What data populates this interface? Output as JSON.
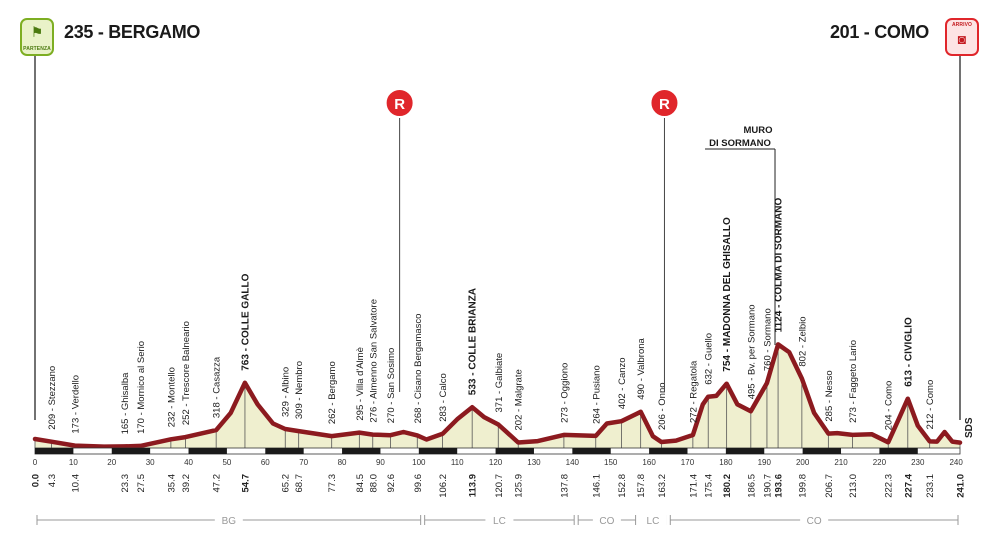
{
  "header": {
    "start_title": "235 - BERGAMO",
    "start_badge": "PARTENZA",
    "finish_title": "201 - COMO",
    "finish_badge": "ARRIVO"
  },
  "chart_data": {
    "type": "area",
    "title": "",
    "xlabel": "",
    "ylabel": "",
    "xlim": [
      0,
      240
    ],
    "ylim": [
      150,
      1350
    ],
    "grid": false,
    "fill_color": "#efefcf",
    "line_color": "#8c1a1f",
    "x_ticks": [
      0,
      10,
      20,
      30,
      40,
      50,
      60,
      70,
      80,
      90,
      100,
      110,
      120,
      130,
      140,
      150,
      160,
      170,
      180,
      190,
      200,
      210,
      220,
      230,
      240
    ],
    "profile": [
      {
        "x": 0,
        "y": 235
      },
      {
        "x": 4.3,
        "y": 209
      },
      {
        "x": 10.4,
        "y": 173
      },
      {
        "x": 18,
        "y": 163
      },
      {
        "x": 23.3,
        "y": 165
      },
      {
        "x": 27.5,
        "y": 170
      },
      {
        "x": 35.4,
        "y": 232
      },
      {
        "x": 39.2,
        "y": 252
      },
      {
        "x": 47.2,
        "y": 318
      },
      {
        "x": 51,
        "y": 480
      },
      {
        "x": 54.7,
        "y": 763
      },
      {
        "x": 58,
        "y": 560
      },
      {
        "x": 62,
        "y": 380
      },
      {
        "x": 65.2,
        "y": 329
      },
      {
        "x": 68.7,
        "y": 309
      },
      {
        "x": 77.3,
        "y": 262
      },
      {
        "x": 84.5,
        "y": 295
      },
      {
        "x": 88.0,
        "y": 276
      },
      {
        "x": 92.6,
        "y": 270
      },
      {
        "x": 96,
        "y": 300
      },
      {
        "x": 99.6,
        "y": 268
      },
      {
        "x": 102,
        "y": 230
      },
      {
        "x": 106.2,
        "y": 283
      },
      {
        "x": 110,
        "y": 420
      },
      {
        "x": 113.9,
        "y": 533
      },
      {
        "x": 117,
        "y": 440
      },
      {
        "x": 120.7,
        "y": 371
      },
      {
        "x": 125.9,
        "y": 202
      },
      {
        "x": 131,
        "y": 215
      },
      {
        "x": 137.8,
        "y": 273
      },
      {
        "x": 146.1,
        "y": 264
      },
      {
        "x": 149,
        "y": 380
      },
      {
        "x": 152.8,
        "y": 402
      },
      {
        "x": 157.8,
        "y": 490
      },
      {
        "x": 161,
        "y": 260
      },
      {
        "x": 163.2,
        "y": 206
      },
      {
        "x": 167,
        "y": 220
      },
      {
        "x": 171.4,
        "y": 272
      },
      {
        "x": 174,
        "y": 560
      },
      {
        "x": 175.4,
        "y": 632
      },
      {
        "x": 177.5,
        "y": 640
      },
      {
        "x": 180.2,
        "y": 754
      },
      {
        "x": 183,
        "y": 560
      },
      {
        "x": 186.5,
        "y": 495
      },
      {
        "x": 190.7,
        "y": 760
      },
      {
        "x": 193.6,
        "y": 1124
      },
      {
        "x": 196.5,
        "y": 1050
      },
      {
        "x": 199.8,
        "y": 802
      },
      {
        "x": 203,
        "y": 480
      },
      {
        "x": 206.7,
        "y": 285
      },
      {
        "x": 209,
        "y": 290
      },
      {
        "x": 213.0,
        "y": 273
      },
      {
        "x": 218,
        "y": 280
      },
      {
        "x": 222.3,
        "y": 204
      },
      {
        "x": 225,
        "y": 420
      },
      {
        "x": 227.4,
        "y": 613
      },
      {
        "x": 230,
        "y": 360
      },
      {
        "x": 233.1,
        "y": 212
      },
      {
        "x": 235,
        "y": 210
      },
      {
        "x": 237,
        "y": 300
      },
      {
        "x": 239,
        "y": 210
      },
      {
        "x": 241.0,
        "y": 201
      }
    ],
    "waypoints": [
      {
        "km": "0.0",
        "x": 0,
        "label": "",
        "bold": true
      },
      {
        "km": "4.3",
        "x": 4.3,
        "label": "209 - Stezzano",
        "bold": false
      },
      {
        "km": "10.4",
        "x": 10.4,
        "label": "173 - Verdello",
        "bold": false
      },
      {
        "km": "23.3",
        "x": 23.3,
        "label": "165 - Ghisalba",
        "bold": false
      },
      {
        "km": "27.5",
        "x": 27.5,
        "label": "170 - Mornico al Serio",
        "bold": false
      },
      {
        "km": "35.4",
        "x": 35.4,
        "label": "232 - Montello",
        "bold": false
      },
      {
        "km": "39.2",
        "x": 39.2,
        "label": "252 - Trescore Balneario",
        "bold": false
      },
      {
        "km": "47.2",
        "x": 47.2,
        "label": "318 - Casazza",
        "bold": false
      },
      {
        "km": "54.7",
        "x": 54.7,
        "label": "763 - COLLE GALLO",
        "bold": true
      },
      {
        "km": "65.2",
        "x": 65.2,
        "label": "329 - Albino",
        "bold": false
      },
      {
        "km": "68.7",
        "x": 68.7,
        "label": "309 - Nembro",
        "bold": false
      },
      {
        "km": "77.3",
        "x": 77.3,
        "label": "262 - Bergamo",
        "bold": false
      },
      {
        "km": "84.5",
        "x": 84.5,
        "label": "295 - Villa d'Almè",
        "bold": false
      },
      {
        "km": "88.0",
        "x": 88.0,
        "label": "276 - Almenno San Salvatore",
        "bold": false
      },
      {
        "km": "92.6",
        "x": 92.6,
        "label": "270 - San Sosimo",
        "bold": false
      },
      {
        "km": "99.6",
        "x": 99.6,
        "label": "268 - Cisano Bergamasco",
        "bold": false
      },
      {
        "km": "106.2",
        "x": 106.2,
        "label": "283 - Calco",
        "bold": false
      },
      {
        "km": "113.9",
        "x": 113.9,
        "label": "533 - COLLE BRIANZA",
        "bold": true
      },
      {
        "km": "120.7",
        "x": 120.7,
        "label": "371 - Galbiate",
        "bold": false
      },
      {
        "km": "125.9",
        "x": 125.9,
        "label": "202 - Malgrate",
        "bold": false
      },
      {
        "km": "137.8",
        "x": 137.8,
        "label": "273 - Oggiono",
        "bold": false
      },
      {
        "km": "146.1",
        "x": 146.1,
        "label": "264 - Pusiano",
        "bold": false
      },
      {
        "km": "152.8",
        "x": 152.8,
        "label": "402 - Canzo",
        "bold": false
      },
      {
        "km": "157.8",
        "x": 157.8,
        "label": "490 - Valbrona",
        "bold": false
      },
      {
        "km": "163.2",
        "x": 163.2,
        "label": "206 - Onno",
        "bold": false
      },
      {
        "km": "171.4",
        "x": 171.4,
        "label": "272 - Regatola",
        "bold": false
      },
      {
        "km": "175.4",
        "x": 175.4,
        "label": "632 - Guello",
        "bold": false
      },
      {
        "km": "180.2",
        "x": 180.2,
        "label": "754 - MADONNA DEL GHISALLO",
        "bold": true
      },
      {
        "km": "186.5",
        "x": 186.5,
        "label": "495 - Bv. per Sormano",
        "bold": false
      },
      {
        "km": "190.7",
        "x": 190.7,
        "label": "760 - Sormano",
        "bold": false
      },
      {
        "km": "193.6",
        "x": 193.6,
        "label": "1124 - COLMA DI SORMANO",
        "bold": true
      },
      {
        "km": "199.8",
        "x": 199.8,
        "label": "802 - Zelbio",
        "bold": false
      },
      {
        "km": "206.7",
        "x": 206.7,
        "label": "285 - Nesso",
        "bold": false
      },
      {
        "km": "213.0",
        "x": 213.0,
        "label": "273 - Faggeto Lario",
        "bold": false
      },
      {
        "km": "222.3",
        "x": 222.3,
        "label": "204 - Como",
        "bold": false
      },
      {
        "km": "227.4",
        "x": 227.4,
        "label": "613 - CIVIGLIO",
        "bold": true
      },
      {
        "km": "233.1",
        "x": 233.1,
        "label": "212 - Como",
        "bold": false
      },
      {
        "km": "241.0",
        "x": 241.0,
        "label": "",
        "bold": true
      }
    ],
    "refreshment_points": [
      {
        "symbol": "R",
        "x": 95
      },
      {
        "symbol": "R",
        "x": 164
      }
    ],
    "annotations": [
      {
        "text_line1": "MURO",
        "text_line2": "DI SORMANO",
        "x": 191.5
      }
    ],
    "provinces": [
      {
        "code": "BG",
        "from": 0,
        "to": 101
      },
      {
        "code": "LC",
        "from": 101,
        "to": 141
      },
      {
        "code": "CO",
        "from": 141,
        "to": 157
      },
      {
        "code": "LC",
        "from": 157,
        "to": 165
      },
      {
        "code": "CO",
        "from": 165,
        "to": 241
      }
    ],
    "logo": "SDS",
    "colors": {
      "start_green": "#7dae22",
      "finish_red": "#e0262b",
      "refresh_red": "#e0262b",
      "profile_line": "#8c1a1f",
      "profile_fill": "#efefcf"
    }
  }
}
